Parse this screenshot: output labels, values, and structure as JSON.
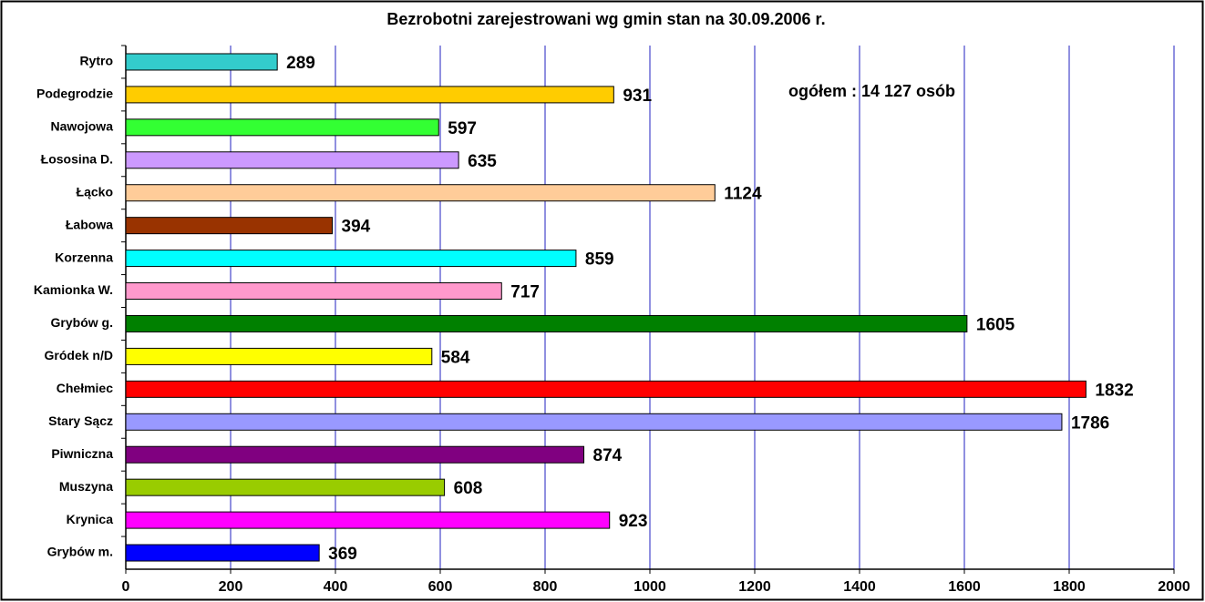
{
  "chart_data": {
    "type": "bar",
    "orientation": "horizontal",
    "title": "Bezrobotni zarejestrowani wg gmin stan na 30.09.2006 r.",
    "annotation": "ogółem : 14 127 osób",
    "categories": [
      "Rytro",
      "Podegrodzie",
      "Nawojowa",
      "Łososina D.",
      "Łącko",
      "Łabowa",
      "Korzenna",
      "Kamionka W.",
      "Grybów g.",
      "Gródek n/D",
      "Chełmiec",
      "Stary Sącz",
      "Piwniczna",
      "Muszyna",
      "Krynica",
      "Grybów m."
    ],
    "values": [
      289,
      931,
      597,
      635,
      1124,
      394,
      859,
      717,
      1605,
      584,
      1832,
      1786,
      874,
      608,
      923,
      369
    ],
    "colors": [
      "#33cccc",
      "#ffcc00",
      "#33ff33",
      "#cc99ff",
      "#ffcc99",
      "#993300",
      "#00ffff",
      "#ff99cc",
      "#008000",
      "#ffff00",
      "#ff0000",
      "#9999ff",
      "#800080",
      "#99cc00",
      "#ff00ff",
      "#0000ff"
    ],
    "xlim": [
      0,
      2000
    ],
    "xticks": [
      0,
      200,
      400,
      600,
      800,
      1000,
      1200,
      1400,
      1600,
      1800,
      2000
    ],
    "grid": true,
    "grid_color": "#2020c0"
  }
}
